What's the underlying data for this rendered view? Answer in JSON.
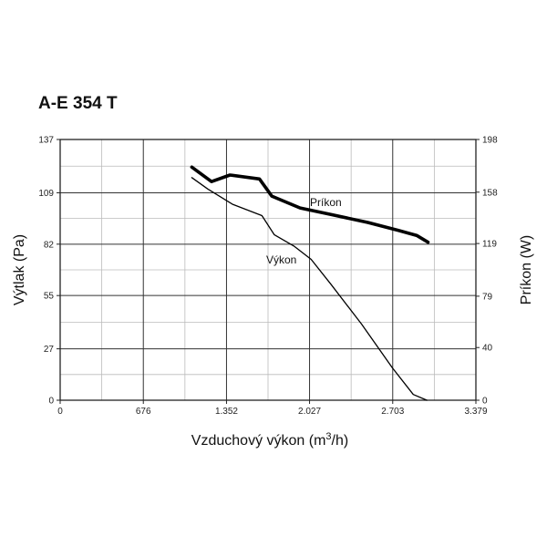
{
  "chart_data": {
    "type": "line",
    "title": "A-E 354 T",
    "xlabel": "Vzduchový výkon (m",
    "xlabel_sup": "3",
    "xlabel_suffix": "/h)",
    "ylabel_left": "Výtlak (Pa)",
    "ylabel_right": "Príkon (W)",
    "xlim": [
      0,
      3379
    ],
    "ylim_left": [
      0,
      137
    ],
    "ylim_right": [
      0,
      198
    ],
    "x_ticks": [
      "0",
      "676",
      "1.352",
      "2.027",
      "2.703",
      "3.379"
    ],
    "x_tick_values": [
      0,
      676,
      1352,
      2027,
      2703,
      3379
    ],
    "y_left_ticks": [
      "0",
      "27",
      "55",
      "82",
      "109",
      "137"
    ],
    "y_left_tick_values": [
      0,
      27,
      55,
      82,
      109,
      137
    ],
    "y_right_ticks": [
      "0",
      "40",
      "79",
      "119",
      "158",
      "198"
    ],
    "y_right_tick_values": [
      0,
      40,
      79,
      119,
      158,
      198
    ],
    "grid": true,
    "series": [
      {
        "name": "Výkon",
        "axis": "left",
        "color": "#000000",
        "x": [
          1070,
          1200,
          1400,
          1640,
          1740,
          1900,
          2040,
          2200,
          2450,
          2700,
          2870,
          2980
        ],
        "y": [
          117,
          111,
          103,
          97,
          87,
          81,
          74,
          61,
          40,
          17,
          3,
          0
        ]
      },
      {
        "name": "Príkon",
        "axis": "right",
        "color": "#000000",
        "x": [
          1070,
          1230,
          1380,
          1620,
          1720,
          1950,
          2200,
          2500,
          2750,
          2900,
          2990
        ],
        "y": [
          177,
          166,
          171,
          168,
          155,
          146,
          141,
          135,
          129,
          125,
          120
        ]
      }
    ]
  }
}
